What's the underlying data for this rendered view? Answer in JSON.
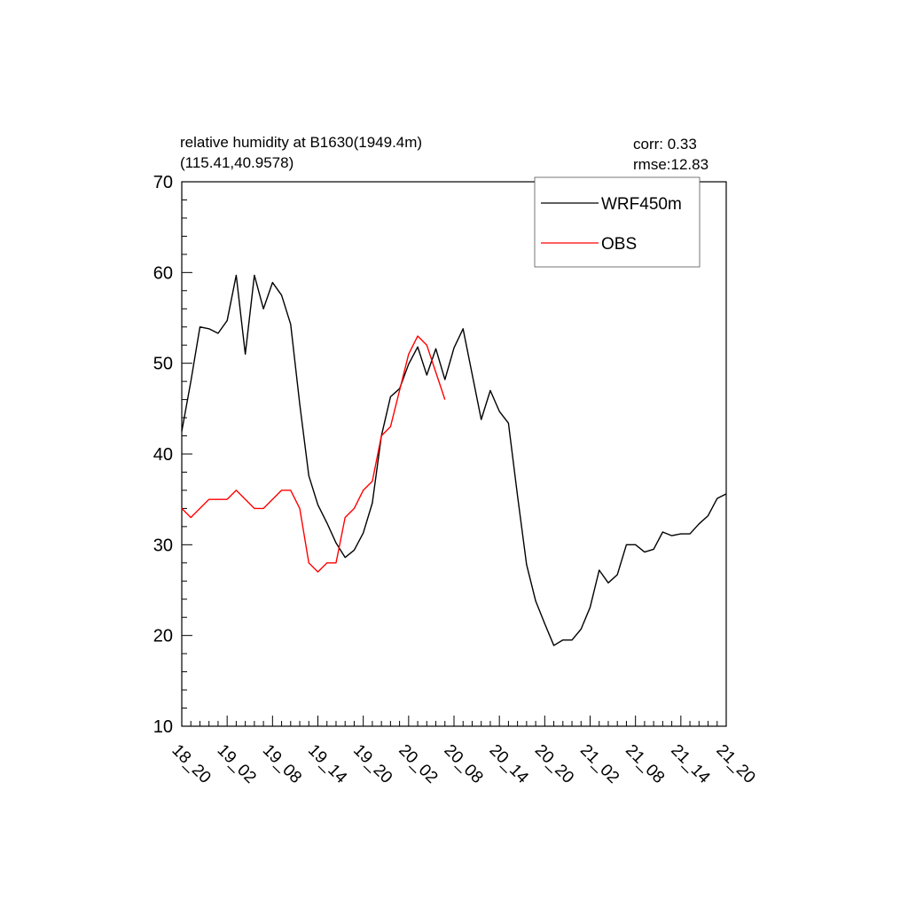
{
  "chart_data": {
    "type": "line",
    "title_line1": "relative humidity at B1630(1949.4m)",
    "title_line2": "(115.41,40.9578)",
    "stats": {
      "corr": "corr:  0.33",
      "rmse": "rmse:12.83"
    },
    "xlabel": "",
    "ylabel": "",
    "ylim": [
      10,
      70
    ],
    "yticks": [
      10,
      20,
      30,
      40,
      50,
      60,
      70
    ],
    "y_minor_step": 2,
    "xlim": [
      0,
      60
    ],
    "xticks": [
      {
        "x": 0,
        "label": "18_20"
      },
      {
        "x": 5,
        "label": "19_02"
      },
      {
        "x": 10,
        "label": "19_08"
      },
      {
        "x": 15,
        "label": "19_14"
      },
      {
        "x": 20,
        "label": "19_20"
      },
      {
        "x": 25,
        "label": "20_02"
      },
      {
        "x": 30,
        "label": "20_08"
      },
      {
        "x": 35,
        "label": "20_14"
      },
      {
        "x": 40,
        "label": "20_20"
      },
      {
        "x": 45,
        "label": "21_02"
      },
      {
        "x": 50,
        "label": "21_08"
      },
      {
        "x": 55,
        "label": "21_14"
      },
      {
        "x": 60,
        "label": "21_20"
      }
    ],
    "legend": {
      "placement": "top-right",
      "entries": [
        "WRF450m",
        "OBS"
      ]
    },
    "grid": false,
    "series": [
      {
        "name": "WRF450m",
        "color": "#000000",
        "x": [
          0,
          1,
          2,
          3,
          4,
          5,
          6,
          7,
          8,
          9,
          10,
          11,
          12,
          13,
          14,
          15,
          16,
          17,
          18,
          19,
          20,
          21,
          22,
          23,
          24,
          25,
          26,
          27,
          28,
          29,
          30,
          31,
          32,
          33,
          34,
          35,
          36,
          37,
          38,
          39,
          40,
          41,
          42,
          43,
          44,
          45,
          46,
          47,
          48,
          49,
          50,
          51,
          52,
          53,
          54,
          55,
          56,
          57,
          58,
          59,
          60
        ],
        "values": [
          42.5,
          48,
          54,
          53.8,
          53.3,
          54.7,
          59.7,
          51,
          59.7,
          56,
          58.9,
          57.5,
          54.3,
          45.5,
          37.6,
          34.4,
          32.4,
          30.2,
          28.6,
          29.4,
          31.3,
          34.6,
          42,
          46.3,
          47.2,
          49.9,
          51.8,
          48.7,
          51.6,
          48.2,
          51.7,
          53.8,
          48.8,
          43.8,
          47,
          44.7,
          43.4,
          35.4,
          27.8,
          23.8,
          21.3,
          18.9,
          19.5,
          19.5,
          20.7,
          23.1,
          27.2,
          25.8,
          26.7,
          30,
          30,
          29.2,
          29.5,
          31.4,
          31,
          31.2,
          31.2,
          32.3,
          33.2,
          35.1,
          35.6
        ]
      },
      {
        "name": "OBS",
        "color": "#ff0000",
        "x": [
          0,
          1,
          2,
          3,
          4,
          5,
          6,
          7,
          8,
          9,
          10,
          11,
          12,
          13,
          14,
          15,
          16,
          17,
          18,
          19,
          20,
          21,
          22,
          23,
          24,
          25,
          26,
          27,
          28,
          29
        ],
        "values": [
          34,
          33,
          34,
          35,
          35,
          35,
          36,
          35,
          34,
          34,
          35,
          36,
          36,
          34,
          28,
          27,
          28,
          28,
          33,
          34,
          36,
          37,
          42,
          43,
          47,
          51,
          53,
          52,
          49,
          46
        ]
      }
    ]
  }
}
